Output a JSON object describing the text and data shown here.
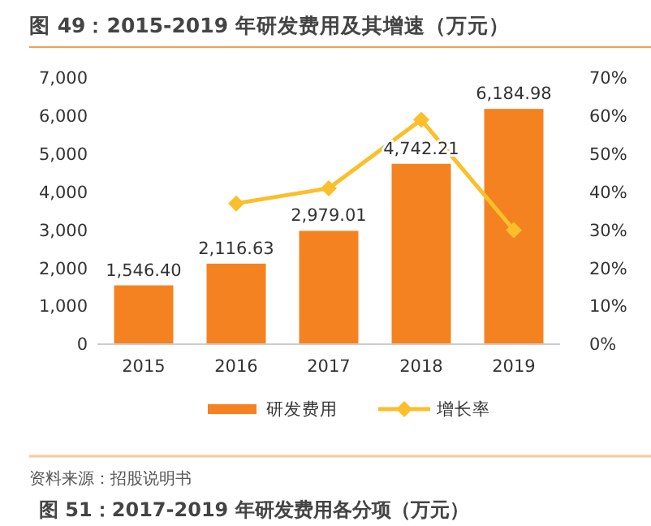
{
  "chart_data": {
    "type": "bar",
    "title": "图 49：2015-2019 年研发费用及其增速（万元）",
    "categories": [
      "2015",
      "2016",
      "2017",
      "2018",
      "2019"
    ],
    "series": [
      {
        "name": "研发费用",
        "color": "#f58220",
        "values": [
          1546.4,
          2116.63,
          2979.01,
          4742.21,
          6184.98
        ],
        "value_labels": [
          "1,546.40",
          "2,116.63",
          "2,979.01",
          "4,742.21",
          "6,184.98"
        ]
      },
      {
        "name": "增长率",
        "type": "line",
        "axis": "y2",
        "color": "#fbbf2b",
        "marker": "diamond",
        "values": [
          null,
          37,
          41,
          59,
          30
        ]
      }
    ],
    "ylim": [
      0,
      7000
    ],
    "yticks": [
      0,
      {
        "value": 1000,
        "label": "1,000"
      },
      {
        "value": 2000,
        "label": "2,000"
      },
      {
        "value": 3000,
        "label": "3,000"
      },
      {
        "value": 4000,
        "label": "4,000"
      },
      {
        "value": 5000,
        "label": "5,000"
      },
      {
        "value": 6000,
        "label": "6,000"
      },
      {
        "value": 7000,
        "label": "7,000"
      }
    ],
    "y2lim": [
      0,
      70
    ],
    "y2ticks": [
      {
        "value": 0,
        "label": "0%"
      },
      {
        "value": 10,
        "label": "10%"
      },
      {
        "value": 20,
        "label": "20%"
      },
      {
        "value": 30,
        "label": "30%"
      },
      {
        "value": 40,
        "label": "40%"
      },
      {
        "value": 50,
        "label": "50%"
      },
      {
        "value": 60,
        "label": "60%"
      },
      {
        "value": 70,
        "label": "70%"
      }
    ],
    "grid": false,
    "legend": "bottom",
    "annotations": [
      "资料来源：招股说明书",
      "图 51：2017-2019 年研发费用各分项（万元）"
    ]
  }
}
